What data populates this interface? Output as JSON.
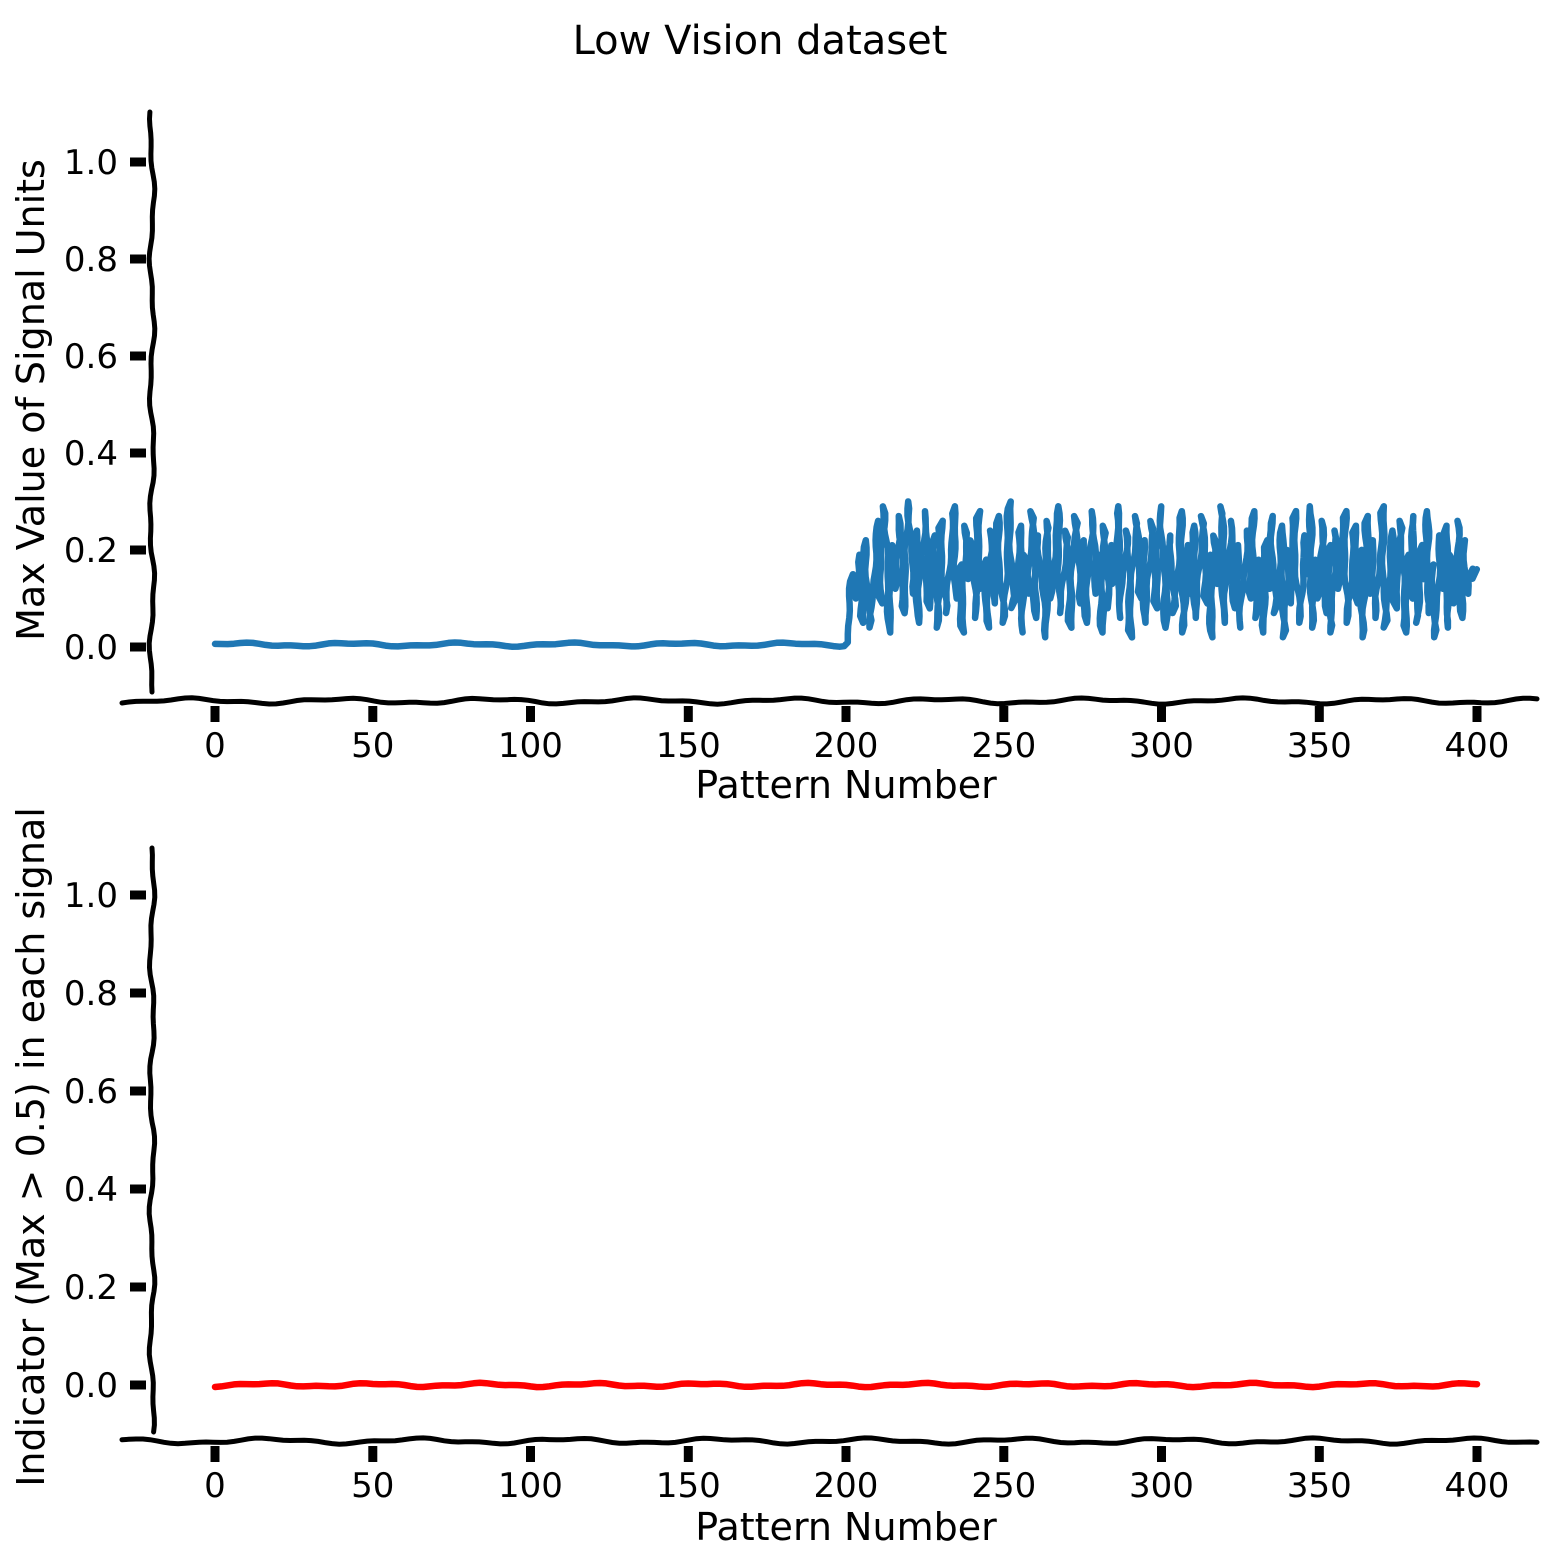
{
  "figure": {
    "title": "Low Vision dataset",
    "background": "#ffffff",
    "text_color": "#000000",
    "axis_color": "#000000",
    "style": "xkcd-sketch"
  },
  "chart_data": [
    {
      "type": "line",
      "title": "Low Vision dataset",
      "xlabel": "Pattern Number",
      "ylabel": "Max Value of Signal Units",
      "xlim": [
        -22,
        419
      ],
      "ylim": [
        -0.09,
        1.1
      ],
      "xticks": [
        0,
        50,
        100,
        150,
        200,
        250,
        300,
        350,
        400
      ],
      "xtick_labels": [
        "0",
        "50",
        "100",
        "150",
        "200",
        "250",
        "300",
        "350",
        "400"
      ],
      "yticks": [
        0.0,
        0.2,
        0.4,
        0.6,
        0.8,
        1.0
      ],
      "ytick_labels": [
        "0.0",
        "0.2",
        "0.4",
        "0.6",
        "0.8",
        "1.0"
      ],
      "grid": false,
      "legend": "none",
      "series": [
        {
          "name": "max-signal-value",
          "color": "#1f77b4",
          "line_width": 6.5,
          "segments": [
            {
              "type": "constant",
              "x_from": 0,
              "x_to": 199,
              "value": 0.005
            },
            {
              "type": "values",
              "x_from": 200,
              "x_step": 1,
              "values": [
                0.01,
                0.06,
                0.15,
                0.1,
                0.19,
                0.05,
                0.22,
                0.13,
                0.04,
                0.18,
                0.26,
                0.09,
                0.29,
                0.16,
                0.03,
                0.21,
                0.12,
                0.27,
                0.07,
                0.17,
                0.3,
                0.11,
                0.24,
                0.05,
                0.19,
                0.28,
                0.08,
                0.15,
                0.23,
                0.04,
                0.26,
                0.13,
                0.07,
                0.2,
                0.29,
                0.1,
                0.17,
                0.03,
                0.25,
                0.14,
                0.22,
                0.06,
                0.28,
                0.12,
                0.18,
                0.04,
                0.24,
                0.09,
                0.27,
                0.16,
                0.05,
                0.21,
                0.3,
                0.08,
                0.14,
                0.25,
                0.03,
                0.19,
                0.11,
                0.28,
                0.06,
                0.23,
                0.15,
                0.02,
                0.26,
                0.1,
                0.2,
                0.29,
                0.07,
                0.13,
                0.24,
                0.04,
                0.17,
                0.27,
                0.09,
                0.22,
                0.05,
                0.15,
                0.28,
                0.11,
                0.19,
                0.03,
                0.25,
                0.08,
                0.21,
                0.13,
                0.29,
                0.06,
                0.16,
                0.24,
                0.02,
                0.18,
                0.27,
                0.1,
                0.22,
                0.05,
                0.14,
                0.26,
                0.08,
                0.2,
                0.29,
                0.04,
                0.12,
                0.23,
                0.07,
                0.17,
                0.28,
                0.03,
                0.21,
                0.11,
                0.25,
                0.06,
                0.15,
                0.27,
                0.09,
                0.19,
                0.02,
                0.23,
                0.13,
                0.29,
                0.05,
                0.17,
                0.26,
                0.08,
                0.21,
                0.04,
                0.14,
                0.24,
                0.1,
                0.28,
                0.06,
                0.18,
                0.03,
                0.22,
                0.12,
                0.27,
                0.07,
                0.16,
                0.25,
                0.02,
                0.2,
                0.09,
                0.28,
                0.13,
                0.05,
                0.23,
                0.15,
                0.29,
                0.04,
                0.18,
                0.1,
                0.26,
                0.07,
                0.21,
                0.03,
                0.24,
                0.12,
                0.17,
                0.28,
                0.05,
                0.15,
                0.25,
                0.09,
                0.2,
                0.02,
                0.27,
                0.11,
                0.22,
                0.06,
                0.18,
                0.29,
                0.04,
                0.16,
                0.24,
                0.08,
                0.13,
                0.26,
                0.03,
                0.19,
                0.1,
                0.27,
                0.05,
                0.21,
                0.14,
                0.28,
                0.07,
                0.17,
                0.02,
                0.23,
                0.12,
                0.25,
                0.04,
                0.19,
                0.09,
                0.26,
                0.06,
                0.22,
                0.11,
                0.16,
                0.14,
                0.16
              ]
            }
          ]
        }
      ]
    },
    {
      "type": "line",
      "title": "",
      "xlabel": "Pattern Number",
      "ylabel": "Indicator (Max > 0.5) in each signal",
      "xlim": [
        -22,
        419
      ],
      "ylim": [
        -0.1,
        1.1
      ],
      "xticks": [
        0,
        50,
        100,
        150,
        200,
        250,
        300,
        350,
        400
      ],
      "xtick_labels": [
        "0",
        "50",
        "100",
        "150",
        "200",
        "250",
        "300",
        "350",
        "400"
      ],
      "yticks": [
        0.0,
        0.2,
        0.4,
        0.6,
        0.8,
        1.0
      ],
      "ytick_labels": [
        "0.0",
        "0.2",
        "0.4",
        "0.6",
        "0.8",
        "1.0"
      ],
      "grid": false,
      "legend": "none",
      "series": [
        {
          "name": "indicator-max-gt-0p5",
          "color": "#ff0000",
          "line_width": 6.5,
          "segments": [
            {
              "type": "constant",
              "x_from": 0,
              "x_to": 400,
              "value": 0.0
            }
          ]
        }
      ]
    }
  ]
}
